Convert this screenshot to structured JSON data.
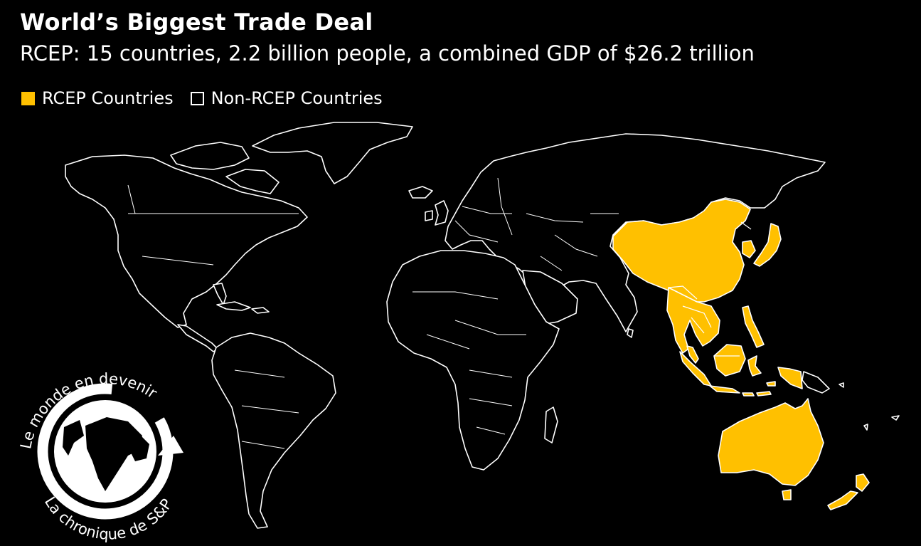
{
  "header": {
    "title": "World’s Biggest Trade Deal",
    "subtitle": "RCEP: 15 countries, 2.2 billion people, a combined GDP of $26.2 trillion"
  },
  "legend": [
    {
      "label": "RCEP Countries",
      "color": "#ffc000"
    },
    {
      "label": "Non-RCEP Countries",
      "color": "#000000"
    }
  ],
  "logo": {
    "top_text": "Le monde en devenir",
    "bottom_text": "La chronique de S&P"
  },
  "colors": {
    "background": "#000000",
    "rcep_fill": "#ffc000",
    "outline": "#ffffff"
  }
}
